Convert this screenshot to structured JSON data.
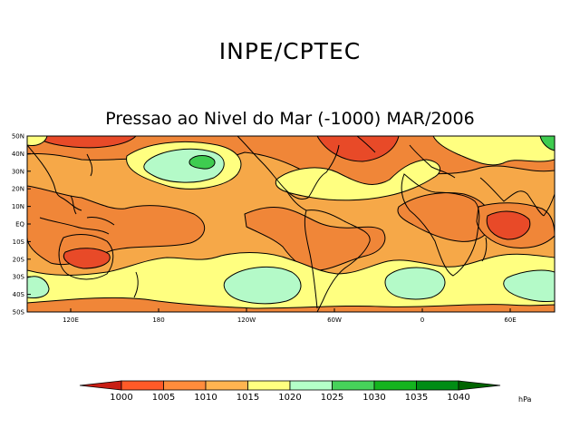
{
  "header": {
    "title": "INPE/CPTEC"
  },
  "map": {
    "title": "Pressao ao Nivel do Mar (-1000) MAR/2006",
    "lat_labels": [
      "50N",
      "40N",
      "30N",
      "20N",
      "10N",
      "EQ",
      "10S",
      "20S",
      "30S",
      "40S",
      "50S"
    ],
    "lon_labels": [
      "120E",
      "180",
      "120W",
      "60W",
      "0",
      "60E"
    ]
  },
  "colorbar": {
    "labels": [
      "1000",
      "1005",
      "1010",
      "1015",
      "1020",
      "1025",
      "1030",
      "1035",
      "1040"
    ],
    "unit": "hPa",
    "colors": [
      "#c81e14",
      "#ff5a28",
      "#ff8c3c",
      "#ffb450",
      "#ffff80",
      "#b4ffc8",
      "#46d25a",
      "#14b41e",
      "#008c14",
      "#006400"
    ]
  },
  "palette": {
    "very_low": "#e84a28",
    "low": "#f08638",
    "mid": "#f6a848",
    "high": "#ffff80",
    "higher": "#b4fac8",
    "highest": "#3ecc50"
  }
}
